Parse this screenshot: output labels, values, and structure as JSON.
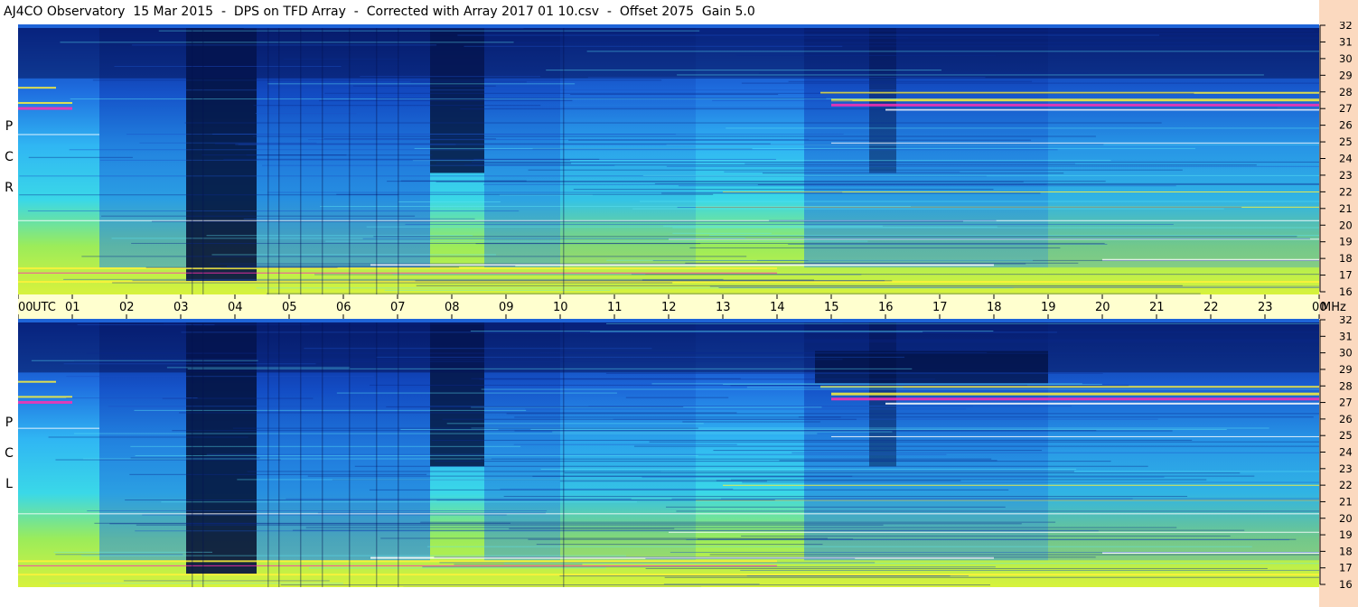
{
  "title": "AJ4CO Observatory  15 Mar 2015  -  DPS on TFD Array  -  Corrected with Array 2017 01 10.csv  -  Offset 2075  Gain 5.0",
  "panels": {
    "top_label": [
      "R",
      "C",
      "P"
    ],
    "bottom_label": [
      "L",
      "C",
      "P"
    ]
  },
  "colors": {
    "strip_bg": "#ffffcf",
    "right_bg": "#fbd9bf",
    "dark": "#02103f",
    "deep_blue": "#0a2a9a",
    "blue": "#1e58d0",
    "light_blue": "#2f9ff2",
    "cyan": "#36d7ee",
    "green_yellow": "#b8f03a",
    "yellow": "#fff23a",
    "magenta": "#ff2fb0",
    "white": "#ffffff"
  },
  "chart_data": {
    "type": "heatmap",
    "description_units": "frequency (MHz) vs time (UTC)",
    "x_label": "UTC",
    "x_ticks": [
      "00",
      "01",
      "02",
      "03",
      "04",
      "05",
      "06",
      "07",
      "08",
      "09",
      "10",
      "11",
      "12",
      "13",
      "14",
      "15",
      "16",
      "17",
      "18",
      "19",
      "20",
      "21",
      "22",
      "23",
      "00"
    ],
    "x_range": [
      0,
      24
    ],
    "y_unit": "MHz",
    "y_ticks": [
      32,
      31,
      30,
      29,
      28,
      27,
      26,
      25,
      24,
      23,
      22,
      21,
      20,
      19,
      18,
      17,
      16
    ],
    "y_range": [
      16,
      32
    ],
    "panels": [
      "RCP",
      "LCP"
    ]
  }
}
